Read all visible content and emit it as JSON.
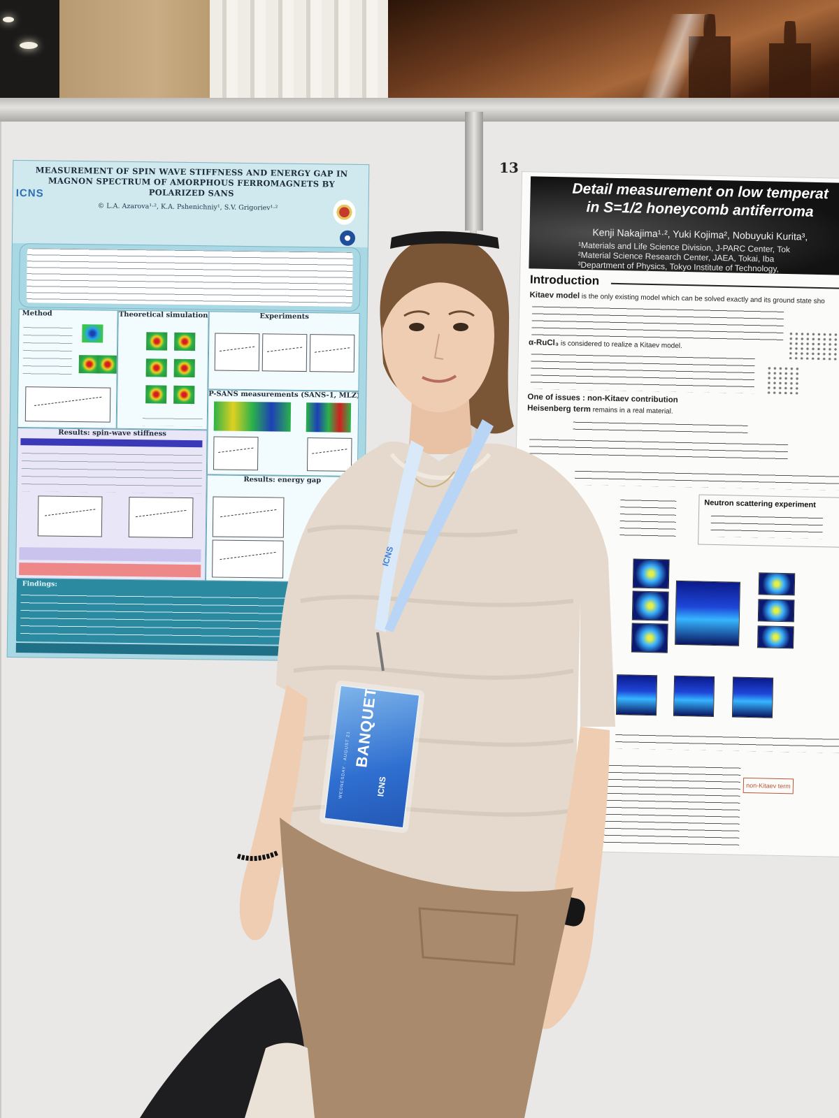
{
  "board_number": "13",
  "left_poster": {
    "title_lines": [
      "MEASUREMENT OF SPIN WAVE STIFFNESS AND ENERGY GAP IN",
      "MAGNON SPECTRUM OF AMORPHOUS FERROMAGNETS BY",
      "POLARIZED SANS"
    ],
    "authors": "© L.A. Azarova¹·², K.A. Pshenichniy¹, S.V. Grigoriev¹·²",
    "logo": "ICNS",
    "sections": {
      "method": "Method",
      "theory": "Theoretical simulation",
      "experiments": "Experiments",
      "psans": "P-SANS measurements (SANS-1, MLZ)",
      "stiffness": "Results: spin-wave stiffness",
      "gap": "Results: energy gap",
      "findings": "Findings:"
    }
  },
  "right_poster": {
    "title_lines": [
      "Detail measurement on low temperat",
      "in S=1/2 honeycomb antiferroma"
    ],
    "authors": "Kenji Nakajima¹·², Yuki Kojima², Nobuyuki Kurita³,",
    "affiliations": [
      "¹Materials and Life Science Division, J-PARC Center, Tok",
      "²Material Science Research Center, JAEA, Tokai, Iba",
      "³Department of Physics, Tokyo Institute of Technology,"
    ],
    "introduction": "Introduction",
    "kitaev_model": "Kitaev model",
    "kitaev_text": "is the only existing model which can be solved exactly and its ground state sho",
    "rucl3": "α-RuCl₃",
    "rucl3_text": "is considered to realize a Kitaev model.",
    "issue": "One of issues : non-Kitaev contribution",
    "heisenberg": "Heisenberg term",
    "heisenberg_text": "remains in a real material.",
    "neutron": "Neutron scattering experiment",
    "non_kitaev_box": "non-Kitaev term"
  },
  "badge": {
    "label": "BANQUET",
    "logo": "ICNS",
    "date": "WEDNESDAY · AUGUST 21"
  },
  "lanyard": {
    "text": "ICNS"
  },
  "colors": {
    "left_poster_bg": "#a8d8e4",
    "left_findings": "#2b8aa0",
    "right_header": "#121212",
    "shirt": "#e4d9cc",
    "pants": "#a98a6c",
    "hair": "#7a5536",
    "badge": "#2f6fd0"
  }
}
